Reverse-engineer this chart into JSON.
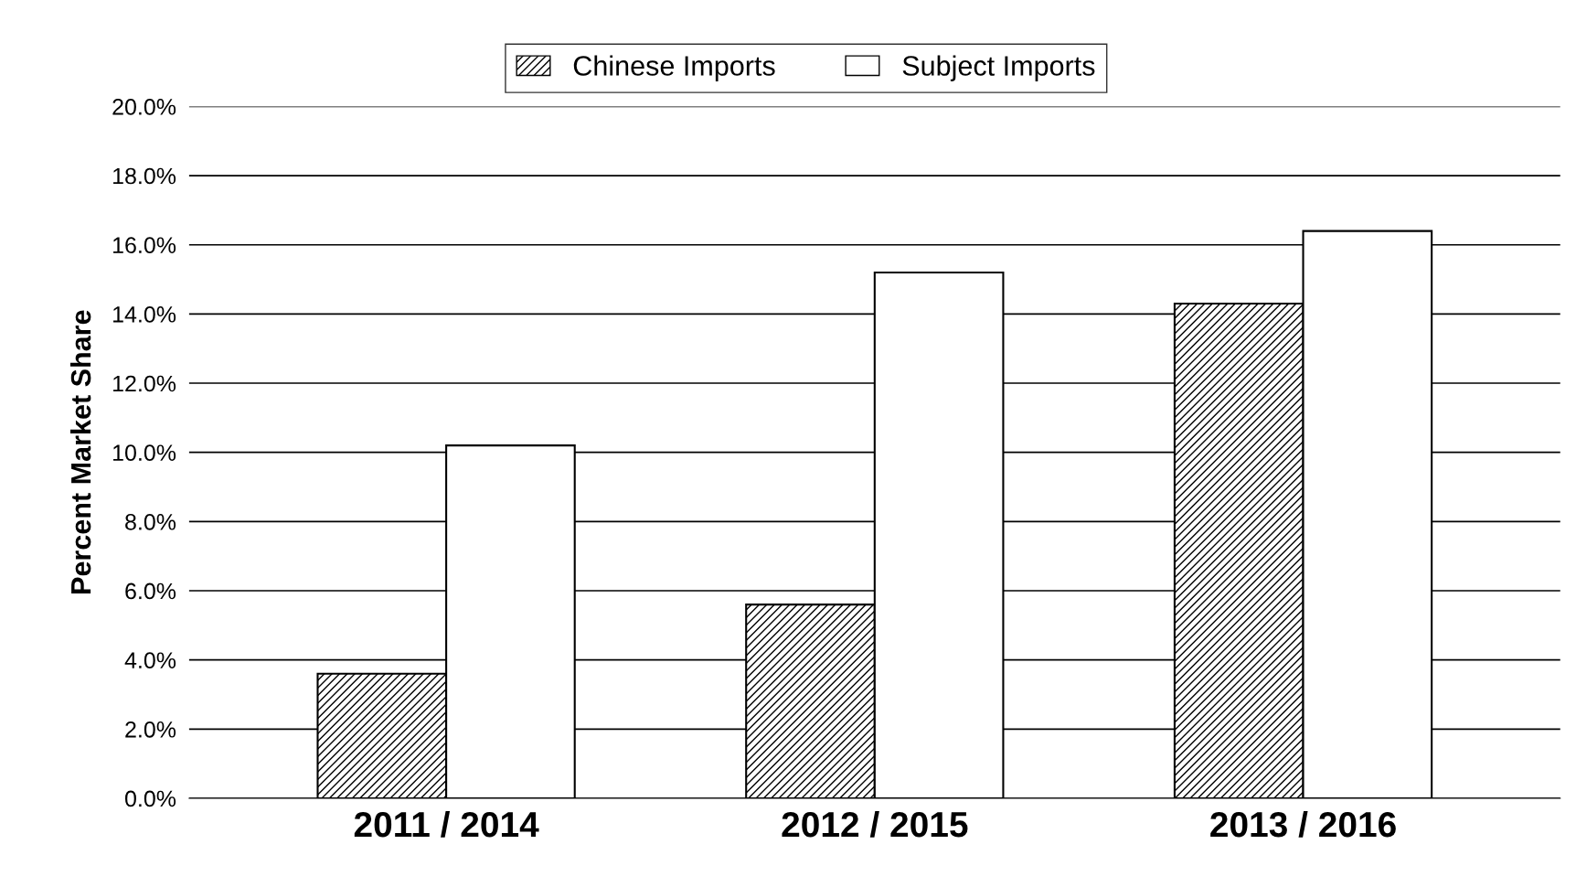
{
  "chart_data": {
    "type": "bar",
    "ylabel": "Percent Market Share",
    "categories": [
      "2011 / 2014",
      "2012 / 2015",
      "2013 / 2016"
    ],
    "series": [
      {
        "name": "Chinese Imports",
        "color": "#000000",
        "values": [
          3.6,
          5.6,
          14.3
        ]
      },
      {
        "name": "Subject Imports",
        "color": "#ffffff",
        "values": [
          10.2,
          15.2,
          16.4
        ]
      }
    ],
    "ylim": [
      0,
      20
    ],
    "yticks": [
      {
        "value": 0,
        "label": "0.0%"
      },
      {
        "value": 2,
        "label": "2.0%"
      },
      {
        "value": 4,
        "label": "4.0%"
      },
      {
        "value": 6,
        "label": "6.0%"
      },
      {
        "value": 8,
        "label": "8.0%"
      },
      {
        "value": 10,
        "label": "10.0%"
      },
      {
        "value": 12,
        "label": "12.0%"
      },
      {
        "value": 14,
        "label": "14.0%"
      },
      {
        "value": 16,
        "label": "16.0%"
      },
      {
        "value": 18,
        "label": "18.0%"
      },
      {
        "value": 20,
        "label": "20.0%"
      }
    ],
    "grid": "y",
    "legend": "top"
  }
}
